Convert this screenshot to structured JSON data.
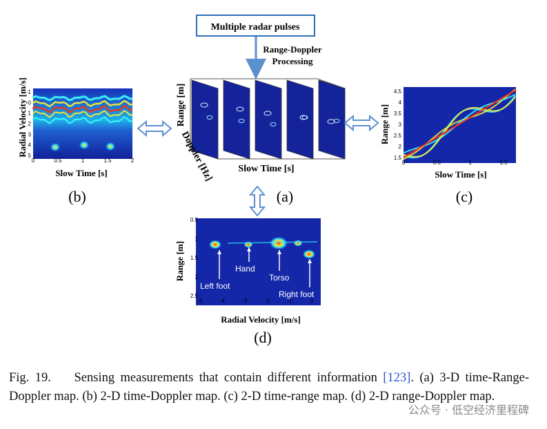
{
  "flow": {
    "source_box": "Multiple radar pulses",
    "processing_lines": [
      "Range-Doppler",
      "Processing"
    ]
  },
  "panels": {
    "a": {
      "label": "(a)",
      "range_axis": "Range [m]",
      "doppler_axis": "Doppler [Hz]",
      "time_axis": "Slow Time [s]"
    },
    "b": {
      "label": "(b)",
      "ylabel": "Radial Velocity [m/s]",
      "xlabel": "Slow Time [s]",
      "xticks": [
        "0",
        "0.5",
        "1",
        "1.5",
        "2"
      ],
      "yticks": [
        "-1",
        "0",
        "1",
        "2",
        "3",
        "4",
        "5"
      ]
    },
    "c": {
      "label": "(c)",
      "ylabel": "Range [m]",
      "xlabel": "Slow Time [s]",
      "xticks": [
        "0",
        "0.5",
        "1",
        "1.5"
      ],
      "yticks": [
        "4.5",
        "4",
        "3.5",
        "3",
        "2.5",
        "2",
        "1.5"
      ]
    },
    "d": {
      "label": "(d)",
      "ylabel": "Range [m]",
      "xlabel": "Radial Velocity [m/s]",
      "xticks": [
        "-5",
        "-4",
        "-3",
        "-2",
        "-1",
        "0"
      ],
      "yticks": [
        "0.5",
        "1",
        "1.5",
        "2",
        "2.5"
      ],
      "annotations": [
        "Left foot",
        "Hand",
        "Torso",
        "Right foot"
      ]
    }
  },
  "caption": {
    "number": "Fig. 19.",
    "text": "Sensing measurements that contain different information",
    "reference": "[123]",
    "rest": ". (a) 3-D time-Range-Doppler map. (b) 2-D time-Doppler map. (c) 2-D time-range map. (d) 2-D range-Doppler map."
  },
  "watermark": "公众号 · 低空经济里程碑"
}
